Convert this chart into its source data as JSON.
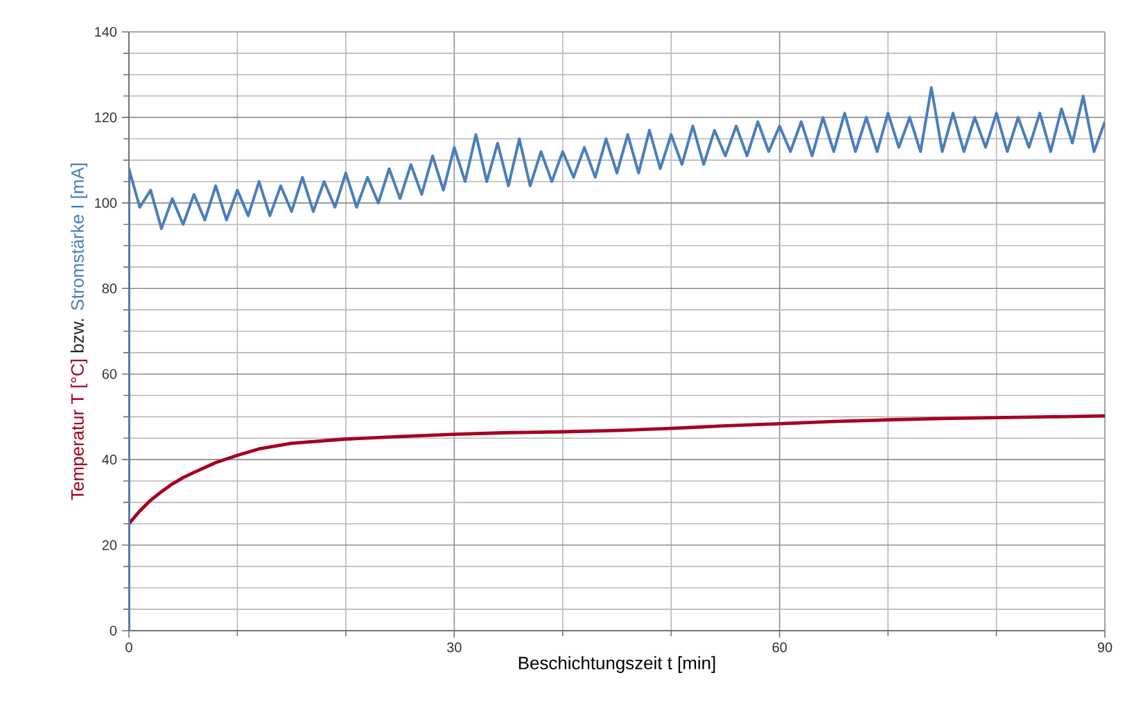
{
  "chart_data": {
    "type": "line",
    "xlabel": "Beschichtungszeit t [min]",
    "ylabel": "bzw.",
    "xlim": [
      0,
      90
    ],
    "ylim": [
      0,
      140
    ],
    "xticks": [
      0,
      {
        "value": 10,
        "label": null
      },
      {
        "value": 20,
        "label": null
      },
      30,
      {
        "value": 40,
        "label": null
      },
      {
        "value": 50,
        "label": null
      },
      60,
      {
        "value": 70,
        "label": null
      },
      {
        "value": 80,
        "label": null
      },
      90
    ],
    "yticks": [
      0,
      {
        "value": 5,
        "label": null
      },
      {
        "value": 10,
        "label": null
      },
      {
        "value": 15,
        "label": null
      },
      20,
      {
        "value": 25,
        "label": null
      },
      {
        "value": 30,
        "label": null
      },
      {
        "value": 35,
        "label": null
      },
      40,
      {
        "value": 45,
        "label": null
      },
      {
        "value": 50,
        "label": null
      },
      {
        "value": 55,
        "label": null
      },
      60,
      {
        "value": 65,
        "label": null
      },
      {
        "value": 70,
        "label": null
      },
      {
        "value": 75,
        "label": null
      },
      80,
      {
        "value": 85,
        "label": null
      },
      {
        "value": 90,
        "label": null
      },
      {
        "value": 95,
        "label": null
      },
      100,
      {
        "value": 105,
        "label": null
      },
      {
        "value": 110,
        "label": null
      },
      {
        "value": 115,
        "label": null
      },
      120,
      {
        "value": 125,
        "label": null
      },
      {
        "value": 130,
        "label": null
      },
      {
        "value": 135,
        "label": null
      },
      140
    ],
    "grid": true,
    "marker": "none",
    "series": [
      {
        "name": "Temperatur T [°C]",
        "color": "#a50021",
        "x": [
          0,
          1,
          2,
          3,
          4,
          5,
          6,
          8,
          10,
          12,
          15,
          20,
          25,
          30,
          35,
          40,
          45,
          50,
          55,
          60,
          65,
          70,
          75,
          80,
          85,
          90
        ],
        "values": [
          25,
          28,
          30.5,
          32.5,
          34.3,
          35.8,
          37,
          39.3,
          41,
          42.5,
          43.8,
          44.8,
          45.4,
          45.9,
          46.3,
          46.5,
          46.8,
          47.3,
          47.9,
          48.4,
          48.9,
          49.3,
          49.6,
          49.8,
          50,
          50.2
        ]
      },
      {
        "name": "Stromstärke I [mA]",
        "color": "#4a7ebb",
        "x": [
          0,
          0,
          1,
          2,
          3,
          4,
          5,
          6,
          7,
          8,
          9,
          10,
          11,
          12,
          13,
          14,
          15,
          16,
          17,
          18,
          19,
          20,
          21,
          22,
          23,
          24,
          25,
          26,
          27,
          28,
          29,
          30,
          31,
          32,
          33,
          34,
          35,
          36,
          37,
          38,
          39,
          40,
          41,
          42,
          43,
          44,
          45,
          46,
          47,
          48,
          49,
          50,
          51,
          52,
          53,
          54,
          55,
          56,
          57,
          58,
          59,
          60,
          61,
          62,
          63,
          64,
          65,
          66,
          67,
          68,
          69,
          70,
          71,
          72,
          73,
          74,
          75,
          76,
          77,
          78,
          79,
          80,
          81,
          82,
          83,
          84,
          85,
          86,
          87,
          88,
          89,
          90
        ],
        "values": [
          0,
          108,
          99,
          103,
          94,
          101,
          95,
          102,
          96,
          104,
          96,
          103,
          97,
          105,
          97,
          104,
          98,
          106,
          98,
          105,
          99,
          107,
          99,
          106,
          100,
          108,
          101,
          109,
          102,
          111,
          103,
          113,
          105,
          116,
          105,
          114,
          104,
          115,
          104,
          112,
          105,
          112,
          106,
          113,
          106,
          115,
          107,
          116,
          107,
          117,
          108,
          116,
          109,
          118,
          109,
          117,
          111,
          118,
          111,
          119,
          112,
          118,
          112,
          119,
          111,
          120,
          112,
          121,
          112,
          120,
          112,
          121,
          113,
          120,
          112,
          127,
          112,
          121,
          112,
          120,
          113,
          121,
          112,
          120,
          113,
          121,
          112,
          122,
          114,
          125,
          112,
          119
        ]
      }
    ]
  }
}
